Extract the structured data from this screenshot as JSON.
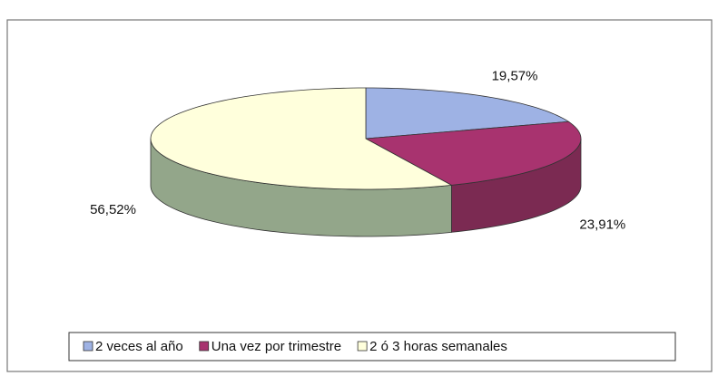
{
  "chart_data": {
    "type": "pie",
    "categories": [
      "2 veces al año",
      "Una vez por trimestre",
      "2 ó 3 horas semanales"
    ],
    "values": [
      19.57,
      23.91,
      56.52
    ],
    "value_labels": [
      "19,57%",
      "23,91%",
      "56,52%"
    ],
    "colors": [
      "#9eb2e4",
      "#a8336f",
      "#ffffdc"
    ],
    "side_colors": [
      "#6f80aa",
      "#7b2a52",
      "#93a68a"
    ],
    "legend": "bottom"
  }
}
